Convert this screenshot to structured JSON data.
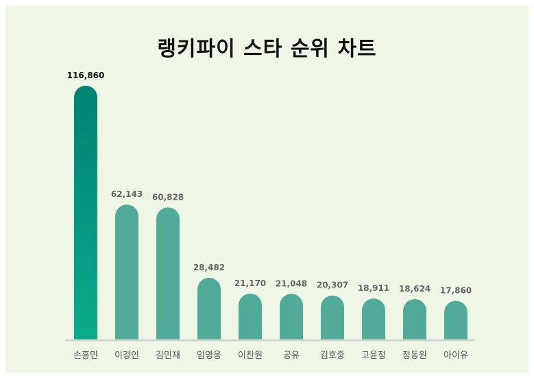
{
  "title": "랭키파이 스타 순위 차트",
  "colors": {
    "background": "#eef6e6",
    "bar_top": "#008272",
    "bar_bottom": "#0bab8b",
    "bar_default": "#52ab98",
    "baseline": "#cfd8cc",
    "first_label": "#111111",
    "other_label": "#666666"
  },
  "chart_data": {
    "type": "bar",
    "title": "랭키파이 스타 순위 차트",
    "categories": [
      "손흥민",
      "이강인",
      "김민재",
      "임영웅",
      "이찬원",
      "공유",
      "김호중",
      "고윤정",
      "정동원",
      "아이유"
    ],
    "values": [
      116860,
      62143,
      60828,
      28482,
      21170,
      21048,
      20307,
      18911,
      18624,
      17860
    ],
    "value_labels": [
      "116,860",
      "62,143",
      "60,828",
      "28,482",
      "21,170",
      "21,048",
      "20,307",
      "18,911",
      "18,624",
      "17,860"
    ],
    "xlabel": "",
    "ylabel": "",
    "ylim": [
      0,
      116860
    ],
    "grid": false,
    "legend": "none"
  }
}
